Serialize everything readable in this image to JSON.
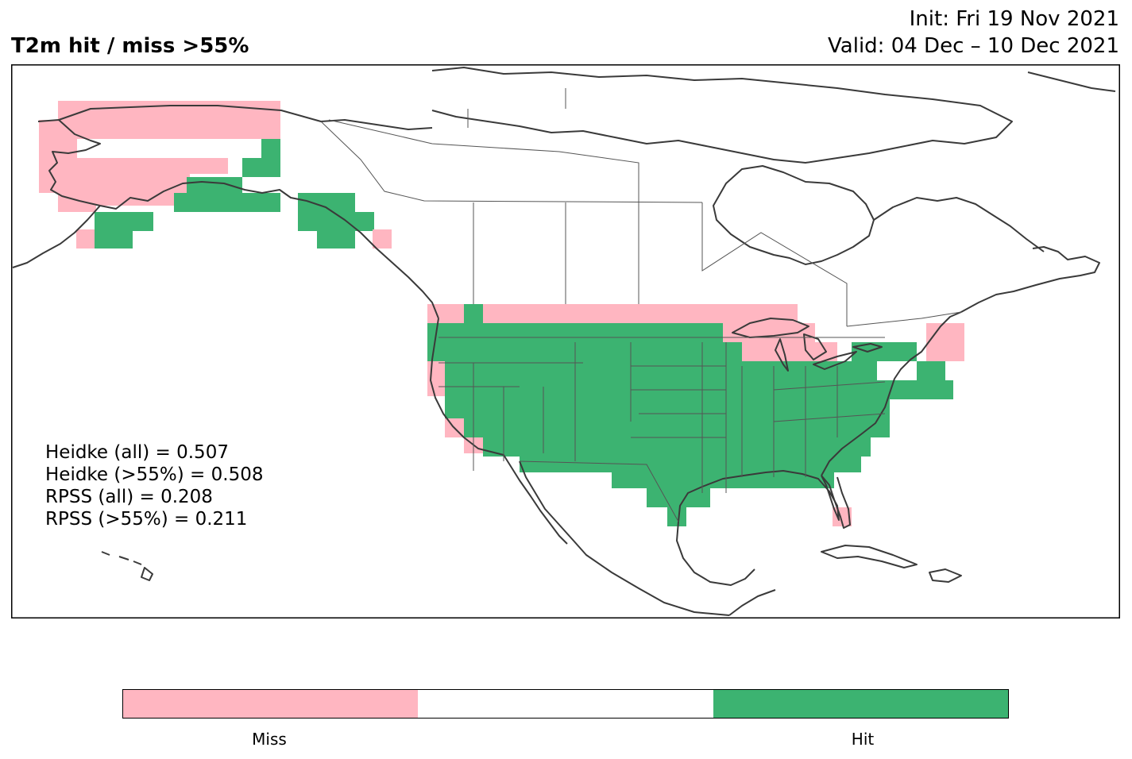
{
  "header": {
    "title": "T2m hit / miss  >55%",
    "init": "Init: Fri 19 Nov 2021",
    "valid": "Valid: 04 Dec – 10 Dec 2021"
  },
  "stats": [
    "Heidke (all) = 0.507",
    "Heidke (>55%) = 0.508",
    "RPSS (all) = 0.208",
    "RPSS (>55%) = 0.211"
  ],
  "legend": {
    "segments": [
      {
        "label": "Miss",
        "color": "#ffb6c1"
      },
      {
        "label": "",
        "color": "#ffffff"
      },
      {
        "label": "Hit",
        "color": "#3cb371"
      }
    ]
  },
  "colors": {
    "miss": "#ffb6c1",
    "hit": "#3cb371",
    "coast": "#3a3a3a",
    "border": "#555555"
  }
}
